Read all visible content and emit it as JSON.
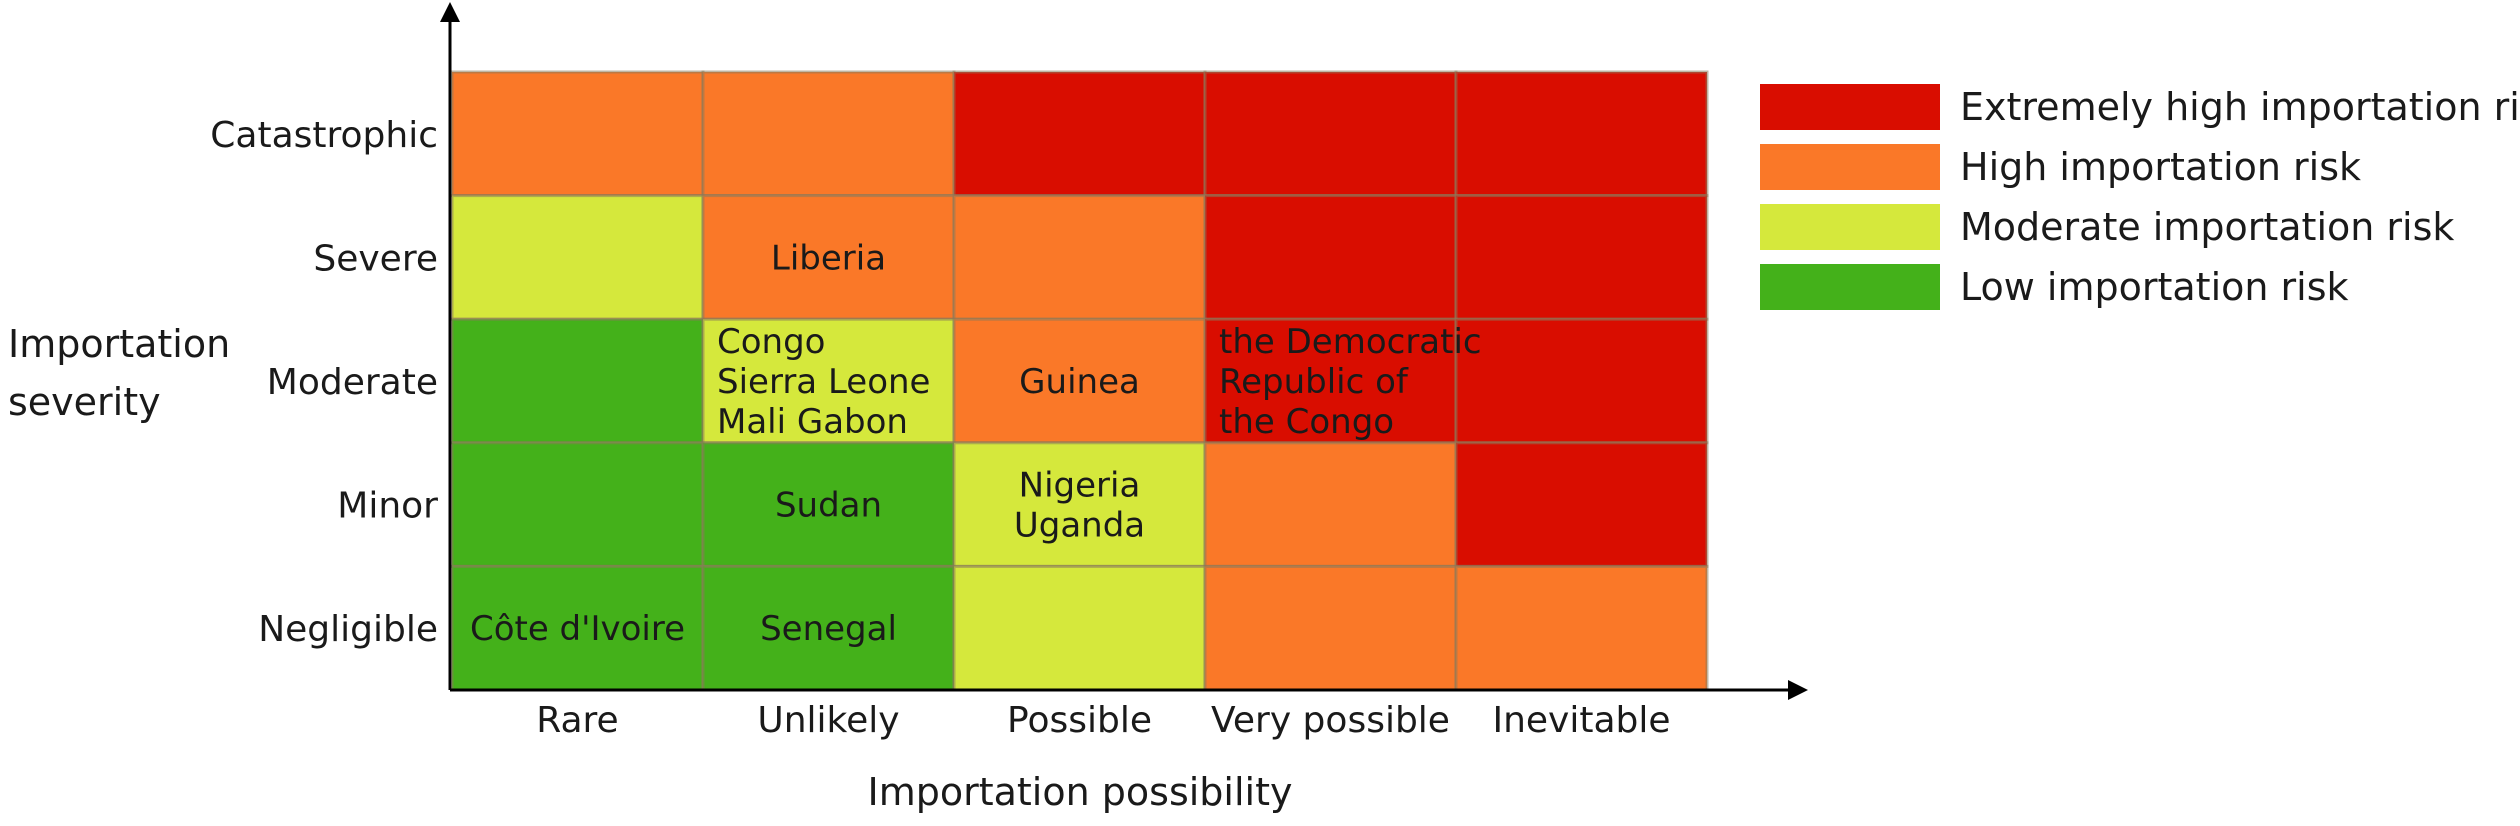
{
  "chart_data": {
    "type": "heatmap",
    "title": "",
    "xlabel": "Importation possibility",
    "ylabel": "Importation severity",
    "x_categories": [
      "Rare",
      "Unlikely",
      "Possible",
      "Very possible",
      "Inevitable"
    ],
    "y_categories": [
      "Catastrophic",
      "Severe",
      "Moderate",
      "Minor",
      "Negligible"
    ],
    "risk_colors": {
      "extreme": "#d90d00",
      "high": "#fa7828",
      "moderate": "#d5e83c",
      "low": "#44b11a"
    },
    "grid": [
      [
        "high",
        "high",
        "extreme",
        "extreme",
        "extreme"
      ],
      [
        "moderate",
        "high",
        "high",
        "extreme",
        "extreme"
      ],
      [
        "low",
        "moderate",
        "high",
        "extreme",
        "extreme"
      ],
      [
        "low",
        "low",
        "moderate",
        "high",
        "extreme"
      ],
      [
        "low",
        "low",
        "moderate",
        "high",
        "high"
      ]
    ],
    "cell_labels": [
      [
        "",
        "",
        "",
        "",
        ""
      ],
      [
        "",
        "Liberia",
        "",
        "",
        ""
      ],
      [
        "",
        "Congo\nSierra Leone\nMali Gabon",
        "Guinea",
        "the Democratic\nRepublic of\nthe Congo",
        ""
      ],
      [
        "",
        "Sudan",
        "Nigeria\nUganda",
        "",
        ""
      ],
      [
        "",
        "Côte d'Ivoire\nSenegal",
        "",
        "",
        ""
      ]
    ],
    "legend": [
      {
        "key": "extreme",
        "label": "Extremely high importation risk"
      },
      {
        "key": "high",
        "label": "High importation risk"
      },
      {
        "key": "moderate",
        "label": "Moderate importation risk"
      },
      {
        "key": "low",
        "label": "Low importation risk"
      }
    ],
    "legend_position": "right",
    "grid_lines": true
  }
}
